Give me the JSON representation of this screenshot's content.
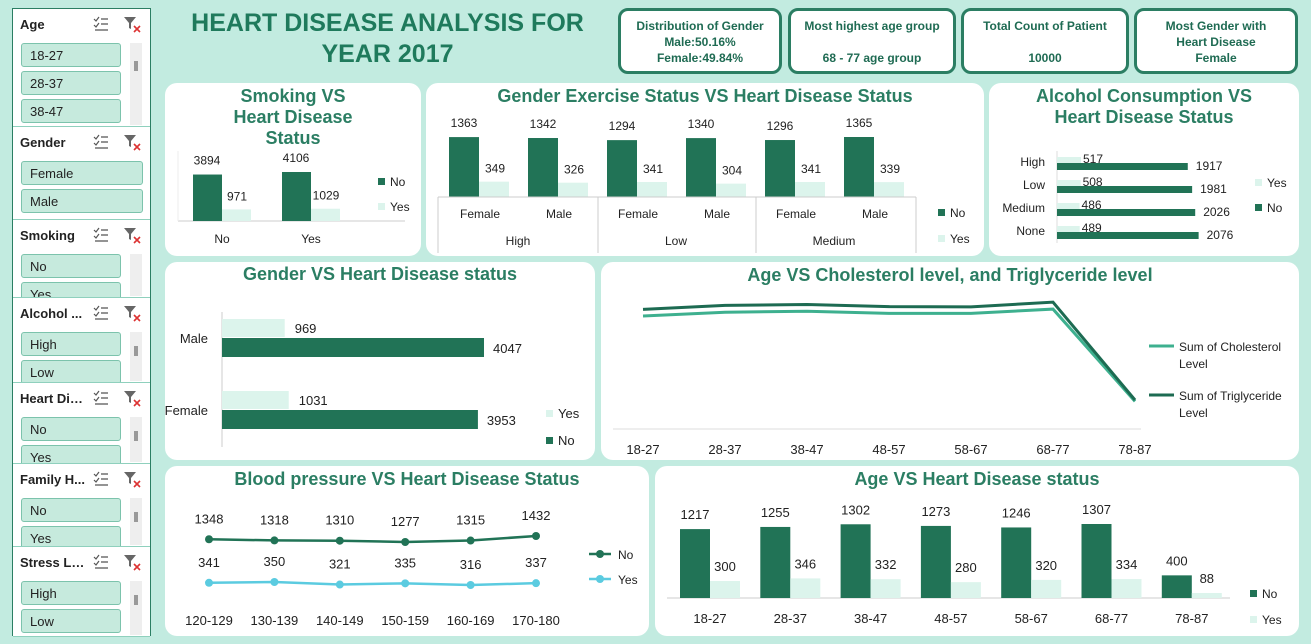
{
  "title": "HEART DISEASE ANALYSIS FOR YEAR 2017",
  "kpis": [
    {
      "line1": "Distribution of Gender",
      "line2": "Male:50.16%",
      "line3": "Female:49.84%"
    },
    {
      "line1": "Most highest age group",
      "line2": "",
      "line3": "68 - 77 age group"
    },
    {
      "line1": "Total Count of Patient",
      "line2": "",
      "line3": "10000"
    },
    {
      "line1": "Most Gender with",
      "line2": "Heart Disease",
      "line3": "Female"
    }
  ],
  "slicers": [
    {
      "title": "Age",
      "items": [
        "18-27",
        "28-37",
        "38-47"
      ]
    },
    {
      "title": "Gender",
      "items": [
        "Female",
        "Male"
      ]
    },
    {
      "title": "Smoking",
      "items": [
        "No",
        "Yes"
      ]
    },
    {
      "title": "Alcohol ...",
      "items": [
        "High",
        "Low"
      ]
    },
    {
      "title": "Heart Dis...",
      "items": [
        "No",
        "Yes"
      ]
    },
    {
      "title": "Family H...",
      "items": [
        "No",
        "Yes"
      ]
    },
    {
      "title": "Stress Le...",
      "items": [
        "High",
        "Low"
      ]
    }
  ],
  "colors": {
    "no": "#217356",
    "yes": "#dcf4ec",
    "line_no": "#217356",
    "line_yes": "#5bcbe0",
    "chol": "#3eb08f",
    "trig": "#1d6b52"
  },
  "chart_data": [
    {
      "type": "bar",
      "title": "Smoking VS Heart Disease Status",
      "categories": [
        "No",
        "Yes"
      ],
      "series": [
        {
          "name": "No",
          "values": [
            3894,
            4106
          ]
        },
        {
          "name": "Yes",
          "values": [
            971,
            1029
          ]
        }
      ]
    },
    {
      "type": "bar",
      "title": "Gender Exercise Status VS Heart Disease Status",
      "groups": [
        "High",
        "Low",
        "Medium"
      ],
      "categories": [
        "Female",
        "Male",
        "Female",
        "Male",
        "Female",
        "Male"
      ],
      "series": [
        {
          "name": "No",
          "values": [
            1363,
            1342,
            1294,
            1340,
            1296,
            1365
          ]
        },
        {
          "name": "Yes",
          "values": [
            349,
            326,
            341,
            304,
            341,
            339
          ]
        }
      ]
    },
    {
      "type": "bar",
      "title": "Alcohol Consumption VS Heart Disease Status",
      "categories": [
        "High",
        "Low",
        "Medium",
        "None"
      ],
      "series": [
        {
          "name": "Yes",
          "values": [
            517,
            508,
            486,
            489
          ]
        },
        {
          "name": "No",
          "values": [
            1917,
            1981,
            2026,
            2076
          ]
        }
      ]
    },
    {
      "type": "bar",
      "title": "Gender VS Heart Disease status",
      "categories": [
        "Male",
        "Female"
      ],
      "series": [
        {
          "name": "Yes",
          "values": [
            969,
            1031
          ]
        },
        {
          "name": "No",
          "values": [
            4047,
            3953
          ]
        }
      ]
    },
    {
      "type": "line",
      "title": "Age VS Cholesterol level, and Triglyceride level",
      "categories": [
        "18-27",
        "28-37",
        "38-47",
        "48-57",
        "58-67",
        "68-77",
        "78-87"
      ],
      "series": [
        {
          "name": "Sum of Cholesterol Level",
          "values": [
            360000,
            374000,
            378000,
            370000,
            370000,
            386000,
            40000
          ]
        },
        {
          "name": "Sum of Triglyceride Level",
          "values": [
            385000,
            400000,
            403000,
            395000,
            394000,
            412000,
            45000
          ]
        }
      ]
    },
    {
      "type": "line",
      "title": "Blood pressure VS Heart Disease Status",
      "categories": [
        "120-129",
        "130-139",
        "140-149",
        "150-159",
        "160-169",
        "170-180"
      ],
      "series": [
        {
          "name": "No",
          "values": [
            1348,
            1318,
            1310,
            1277,
            1315,
            1432
          ]
        },
        {
          "name": "Yes",
          "values": [
            341,
            350,
            321,
            335,
            316,
            337
          ]
        }
      ]
    },
    {
      "type": "bar",
      "title": "Age VS Heart Disease status",
      "categories": [
        "18-27",
        "28-37",
        "38-47",
        "48-57",
        "58-67",
        "68-77",
        "78-87"
      ],
      "series": [
        {
          "name": "No",
          "values": [
            1217,
            1255,
            1302,
            1273,
            1246,
            1307,
            400
          ]
        },
        {
          "name": "Yes",
          "values": [
            300,
            346,
            332,
            280,
            320,
            334,
            88
          ]
        }
      ]
    }
  ]
}
